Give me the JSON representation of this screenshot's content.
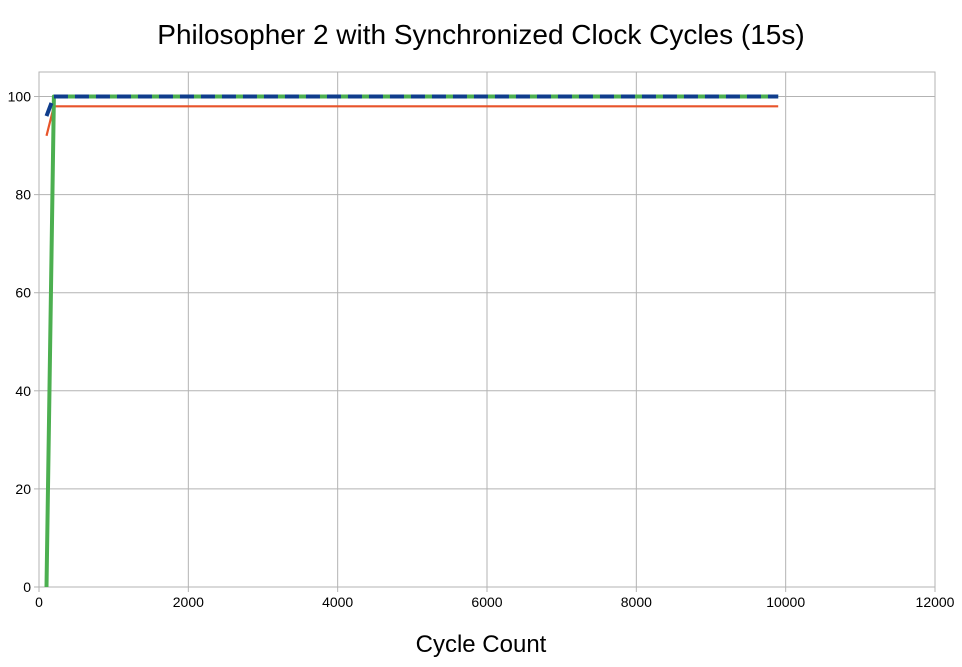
{
  "chart_data": {
    "type": "line",
    "title": "Philosopher 2 with Synchronized Clock Cycles (15s)",
    "xlabel": "Cycle Count",
    "ylabel": "",
    "xlim": [
      0,
      12000
    ],
    "ylim": [
      0,
      105
    ],
    "x_ticks": [
      0,
      2000,
      4000,
      6000,
      8000,
      10000,
      12000
    ],
    "y_ticks": [
      0,
      20,
      40,
      60,
      80,
      100
    ],
    "grid": true,
    "legend": "none",
    "series": [
      {
        "color": "#e8542a",
        "style": "solid",
        "x": [
          100,
          200,
          9900
        ],
        "y": [
          92,
          98,
          98
        ]
      },
      {
        "color": "#4caf50",
        "style": "solid",
        "x": [
          100,
          200,
          9900
        ],
        "y": [
          0,
          100,
          100
        ]
      },
      {
        "color": "#0f3d8c",
        "style": "dashed",
        "x": [
          100,
          200,
          9900
        ],
        "y": [
          96,
          100,
          100
        ]
      }
    ]
  }
}
